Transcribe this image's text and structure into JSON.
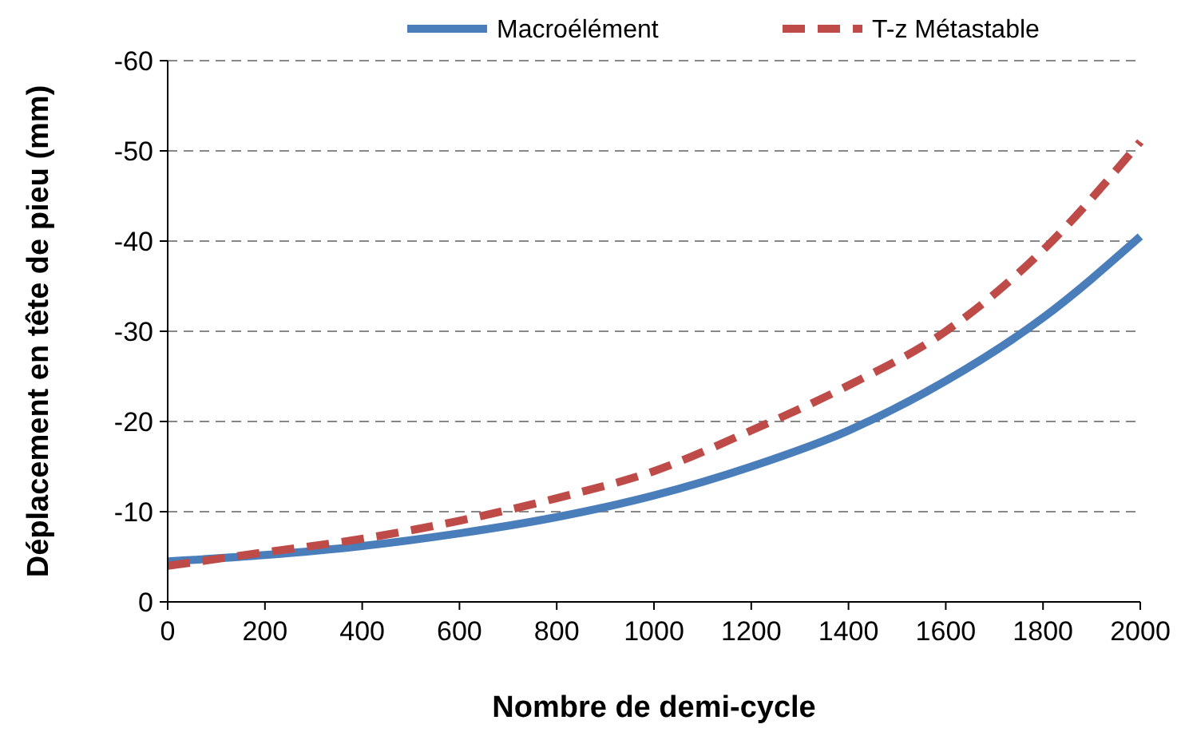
{
  "chart_data": {
    "type": "line",
    "xlabel": "Nombre de demi-cycle",
    "ylabel": "Déplacement en tête de pieu (mm)",
    "xlim": [
      0,
      2000
    ],
    "xticks": [
      0,
      200,
      400,
      600,
      800,
      1000,
      1200,
      1400,
      1600,
      1800,
      2000
    ],
    "ylim": [
      0,
      -60
    ],
    "yticks": [
      0,
      -10,
      -20,
      -30,
      -40,
      -50,
      -60
    ],
    "grid": "y",
    "legend": "top right",
    "marker": "none",
    "series": [
      {
        "name": "Macroélément",
        "color": "#4a7ebb",
        "line_style": "solid",
        "x": [
          0,
          200,
          400,
          600,
          800,
          1000,
          1200,
          1400,
          1600,
          1800,
          2000
        ],
        "values": [
          -4.5,
          -5.2,
          -6.2,
          -7.6,
          -9.4,
          -11.8,
          -15,
          -19,
          -24.5,
          -31.5,
          -40.5
        ]
      },
      {
        "name": "T-z Métastable",
        "color": "#be4b48",
        "line_style": "dashed",
        "x": [
          0,
          200,
          400,
          600,
          800,
          1000,
          1200,
          1400,
          1600,
          1800,
          2000
        ],
        "values": [
          -4,
          -5.5,
          -7,
          -9,
          -11.5,
          -14.5,
          -19,
          -24,
          -30,
          -39,
          -51
        ]
      }
    ]
  }
}
